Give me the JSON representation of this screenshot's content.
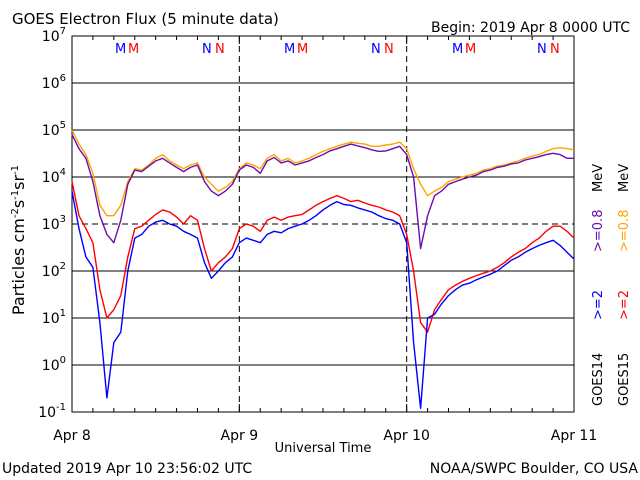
{
  "header": {
    "title": "GOES Electron Flux (5 minute data)",
    "begin": "Begin: 2019 Apr 8 0000 UTC"
  },
  "footer": {
    "updated": "Updated 2019 Apr 10 23:56:02 UTC",
    "credit": "NOAA/SWPC Boulder, CO USA"
  },
  "right_labels": {
    "goes14": "GOES14",
    "goes15": "GOES15",
    "gt2_14": ">=2",
    "gt08_14": ">=0.8",
    "gt2_15": ">=2",
    "gt08_15": ">=0.8",
    "mev1": "MeV",
    "mev2": "MeV"
  },
  "markers": {
    "blue": "M",
    "red": "M",
    "blue_n": "N",
    "red_n": "N"
  },
  "colors": {
    "goes14_gt2": "#0000ff",
    "goes14_gt08": "#6a0dad",
    "goes15_gt2": "#ff0000",
    "goes15_gt08": "#ffa500",
    "frame": "#000000"
  },
  "chart_data": {
    "type": "line",
    "title": "GOES Electron Flux (5 minute data)",
    "xlabel": "Universal Time",
    "ylabel": "Particles cm-2s-1sr-1",
    "yscale": "log",
    "ylim": [
      0.1,
      10000000
    ],
    "xlim": [
      0,
      72
    ],
    "x_unit": "hours since 2019 Apr 8 0000 UTC",
    "x_ticks": [
      "Apr 8",
      "Apr 9",
      "Apr 10",
      "Apr 11"
    ],
    "y_ticks": [
      "10^-1",
      "10^0",
      "10^1",
      "10^2",
      "10^3",
      "10^4",
      "10^5",
      "10^6",
      "10^7"
    ],
    "threshold_line": 1000,
    "grid": true,
    "x": [
      0,
      1,
      2,
      3,
      4,
      5,
      6,
      7,
      8,
      9,
      10,
      11,
      12,
      13,
      14,
      15,
      16,
      17,
      18,
      19,
      20,
      21,
      22,
      23,
      24,
      25,
      26,
      27,
      28,
      29,
      30,
      31,
      32,
      33,
      34,
      35,
      36,
      37,
      38,
      39,
      40,
      41,
      42,
      43,
      44,
      45,
      46,
      47,
      48,
      49,
      50,
      51,
      52,
      53,
      54,
      55,
      56,
      57,
      58,
      59,
      60,
      61,
      62,
      63,
      64,
      65,
      66,
      67,
      68,
      69,
      70,
      71,
      72
    ],
    "series": [
      {
        "name": "GOES15 >=0.8 MeV",
        "color": "#ffa500",
        "values": [
          100000,
          50000,
          30000,
          12000,
          2500,
          1500,
          1500,
          2500,
          8000,
          15000,
          14000,
          18000,
          25000,
          30000,
          22000,
          18000,
          15000,
          18000,
          20000,
          10000,
          7000,
          5000,
          6000,
          8000,
          15000,
          20000,
          18000,
          15000,
          25000,
          30000,
          22000,
          25000,
          20000,
          22000,
          25000,
          30000,
          35000,
          40000,
          45000,
          50000,
          55000,
          52000,
          50000,
          45000,
          45000,
          48000,
          50000,
          55000,
          40000,
          15000,
          7000,
          4000,
          5000,
          6000,
          8000,
          9000,
          10000,
          11000,
          12000,
          14000,
          15000,
          17000,
          18000,
          20000,
          22000,
          25000,
          28000,
          30000,
          35000,
          40000,
          42000,
          40000,
          38000
        ]
      },
      {
        "name": "GOES14 >=0.8 MeV",
        "color": "#6a0dad",
        "values": [
          80000,
          40000,
          25000,
          8000,
          1500,
          600,
          400,
          1200,
          7000,
          14000,
          13000,
          17000,
          22000,
          25000,
          20000,
          16000,
          13000,
          16000,
          18000,
          8000,
          5000,
          4000,
          5000,
          7000,
          14000,
          18000,
          16000,
          12000,
          22000,
          26000,
          20000,
          22000,
          18000,
          20000,
          22000,
          26000,
          30000,
          36000,
          40000,
          45000,
          50000,
          46000,
          42000,
          38000,
          35000,
          36000,
          40000,
          45000,
          30000,
          10000,
          300,
          1500,
          4000,
          5000,
          7000,
          8000,
          9000,
          10000,
          11000,
          13000,
          14000,
          16000,
          17000,
          19000,
          20000,
          23000,
          25000,
          27000,
          30000,
          32000,
          30000,
          25000,
          25000
        ]
      },
      {
        "name": "GOES15 >=2 MeV",
        "color": "#ff0000",
        "values": [
          8000,
          1500,
          800,
          400,
          40,
          10,
          15,
          30,
          200,
          800,
          900,
          1200,
          1600,
          2000,
          1800,
          1400,
          1000,
          1500,
          1200,
          300,
          100,
          150,
          200,
          300,
          800,
          1000,
          900,
          700,
          1200,
          1400,
          1200,
          1400,
          1500,
          1600,
          2000,
          2500,
          3000,
          3500,
          4000,
          3500,
          3000,
          3200,
          2800,
          2500,
          2300,
          2000,
          1800,
          1500,
          600,
          100,
          8,
          5,
          15,
          25,
          40,
          50,
          60,
          70,
          80,
          90,
          100,
          120,
          150,
          200,
          250,
          300,
          400,
          500,
          700,
          900,
          900,
          700,
          500
        ]
      },
      {
        "name": "GOES14 >=2 MeV",
        "color": "#0000ff",
        "values": [
          5000,
          800,
          200,
          120,
          8,
          0.2,
          3,
          5,
          100,
          500,
          600,
          900,
          1100,
          1200,
          1000,
          900,
          700,
          600,
          500,
          150,
          70,
          100,
          150,
          200,
          400,
          500,
          450,
          400,
          600,
          700,
          650,
          800,
          900,
          1000,
          1200,
          1500,
          2000,
          2500,
          3000,
          2600,
          2500,
          2200,
          2000,
          1800,
          1500,
          1300,
          1200,
          1000,
          400,
          3,
          0.12,
          10,
          12,
          20,
          30,
          40,
          50,
          55,
          65,
          75,
          85,
          100,
          130,
          170,
          200,
          250,
          300,
          350,
          400,
          450,
          350,
          250,
          180
        ]
      }
    ]
  }
}
